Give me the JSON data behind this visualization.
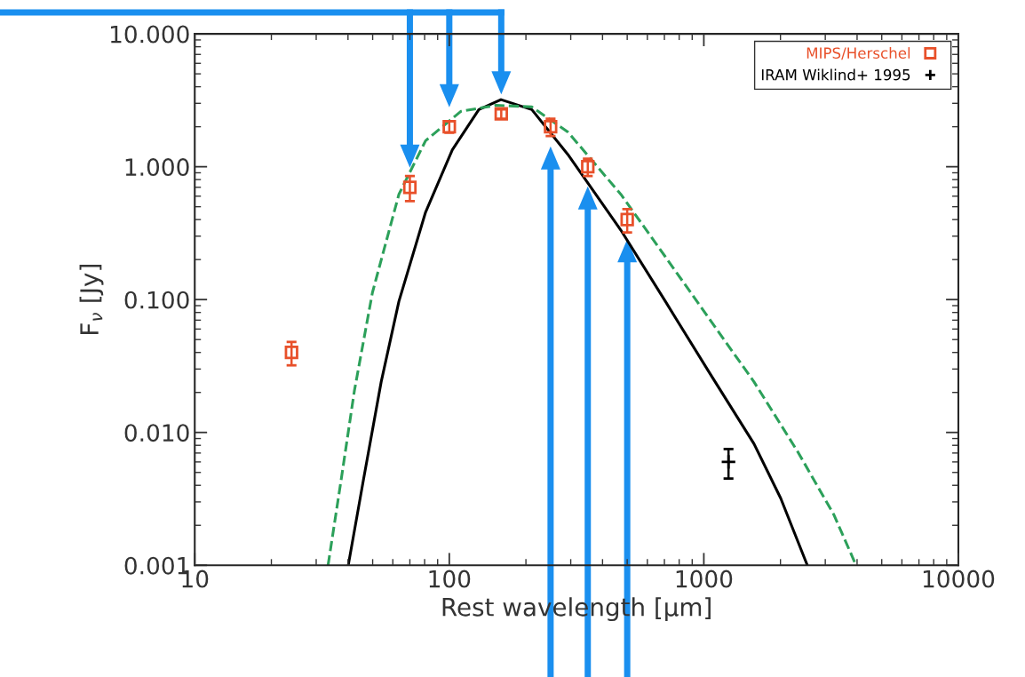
{
  "chart_data": {
    "type": "scatter",
    "xlabel": "Rest wavelength [μm]",
    "ylabel": "F$_{ν}$ [Jy]",
    "log": "xy",
    "xlim": [
      10,
      10000
    ],
    "xticks": [
      10,
      100,
      1000,
      10000
    ],
    "ylim": [
      0.001,
      10
    ],
    "yticks": [
      {
        "value": 0.001,
        "label": "0.001"
      },
      {
        "value": 0.01,
        "label": "0.010"
      },
      {
        "value": 0.1,
        "label": "0.100"
      },
      {
        "value": 1,
        "label": "1.000"
      },
      {
        "value": 10,
        "label": "10.000"
      }
    ],
    "grid": false,
    "legend": "top right",
    "series": [
      {
        "name": "MIPS/Herschel",
        "marker": "square",
        "color": "#e8502a",
        "x": [
          24,
          70,
          100,
          160,
          250,
          350,
          500
        ],
        "values": [
          0.04,
          0.7,
          2.0,
          2.5,
          2.0,
          1.0,
          0.4
        ],
        "errors": [
          0.008,
          0.15,
          0.2,
          0.2,
          0.3,
          0.15,
          0.08
        ]
      },
      {
        "name": "IRAM Wiklind+ 1995",
        "marker": "cross",
        "color": "#000000",
        "x": [
          1250
        ],
        "values": [
          0.006
        ],
        "errors": [
          0.0015
        ]
      },
      {
        "type": "line",
        "line_style": "solid",
        "color": "#000000",
        "x": [
          40.1,
          46,
          54,
          63.4,
          80.7,
          102.8,
          130.6,
          159.6,
          211,
          292,
          472,
          706,
          1054,
          1575,
          2004,
          2550
        ],
        "values": [
          0.001,
          0.0044,
          0.024,
          0.097,
          0.455,
          1.34,
          2.69,
          3.2,
          2.69,
          1.24,
          0.333,
          0.097,
          0.028,
          0.0082,
          0.0032,
          0.001
        ]
      },
      {
        "type": "line",
        "line_style": "dashed",
        "color": "#2ca05a",
        "x": [
          33.4,
          37.6,
          42.4,
          49.9,
          63.4,
          80.7,
          111,
          153,
          211,
          292,
          472,
          706,
          1054,
          1575,
          2355,
          3243,
          3963
        ],
        "values": [
          0.001,
          0.0044,
          0.0207,
          0.113,
          0.62,
          1.57,
          2.61,
          2.9,
          2.82,
          1.83,
          0.62,
          0.21,
          0.071,
          0.024,
          0.007,
          0.0024,
          0.001
        ]
      }
    ]
  }
}
